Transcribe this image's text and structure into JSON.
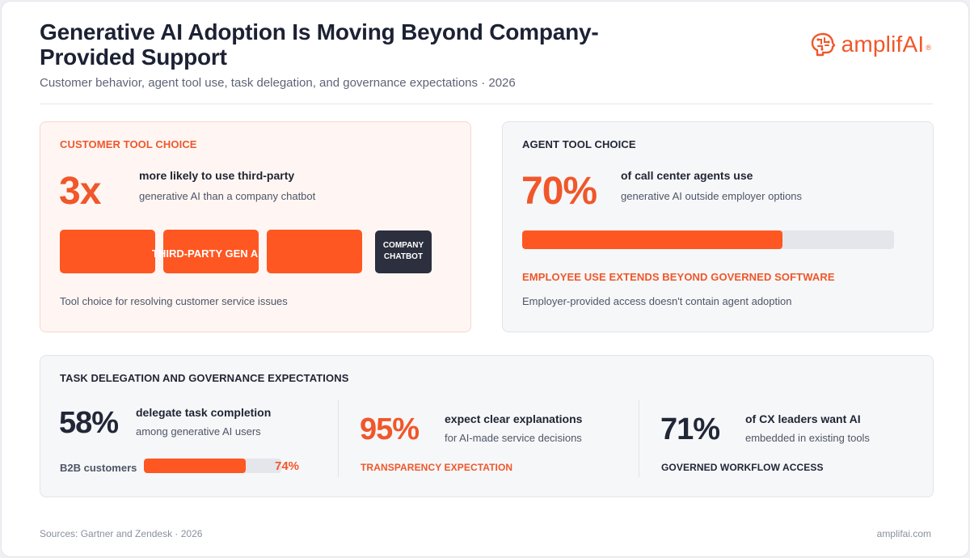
{
  "header": {
    "title": "Generative AI Adoption Is Moving Beyond Company-Provided Support",
    "subtitle": "Customer behavior, agent tool use, task delegation, and governance expectations · 2026",
    "logo_text": "amplifAI",
    "logo_mark": "®"
  },
  "customer": {
    "label": "CUSTOMER TOOL CHOICE",
    "big": "3x",
    "head": "more likely to use third-party",
    "sub": "generative AI than a company chatbot",
    "tiles_caption": "THIRD-PARTY GEN AI",
    "chatbot_line1": "COMPANY",
    "chatbot_line2": "CHATBOT",
    "note": "Tool choice for resolving customer service issues",
    "ratio": 3
  },
  "agent": {
    "label": "AGENT TOOL CHOICE",
    "big": "70%",
    "head": "of call center agents use",
    "sub": "generative AI outside employer options",
    "bar_value": 0.7,
    "emphasis": "EMPLOYEE USE EXTENDS BEYOND GOVERNED SOFTWARE",
    "note": "Employer-provided access doesn't contain agent adoption"
  },
  "task": {
    "label": "TASK DELEGATION AND GOVERNANCE EXPECTATIONS",
    "col1": {
      "big": "58%",
      "head": "delegate task completion",
      "sub": "among generative AI users",
      "bar_label": "B2B customers",
      "bar_value_text": "74%",
      "bar_value": 0.74
    },
    "col2": {
      "big": "95%",
      "head": "expect clear explanations",
      "sub": "for AI-made service decisions",
      "tag": "TRANSPARENCY EXPECTATION"
    },
    "col3": {
      "big": "71%",
      "head": "of CX leaders want AI",
      "sub": "embedded in existing tools",
      "tag": "GOVERNED WORKFLOW ACCESS"
    }
  },
  "footer": {
    "sources": "Sources: Gartner and Zendesk · 2026",
    "site": "amplifai.com"
  },
  "colors": {
    "accent": "#ff5722",
    "brand": "#f0572a",
    "dark": "#1f2433",
    "chatbot": "#2c2f3d"
  },
  "icons": {
    "logo": "brain-circuit-icon"
  }
}
